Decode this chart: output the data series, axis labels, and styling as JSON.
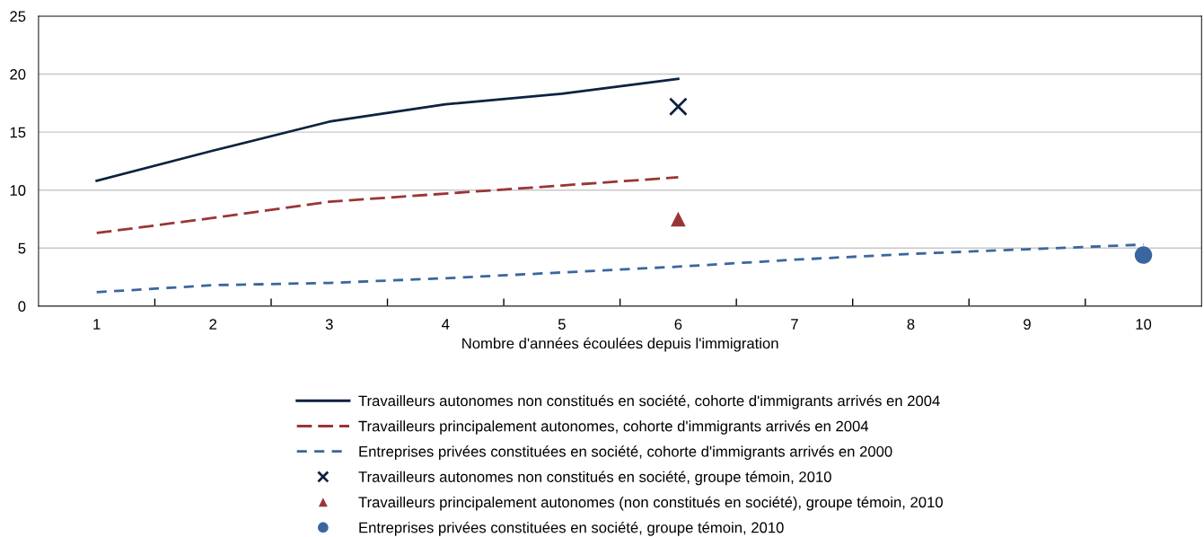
{
  "chart_data": {
    "type": "line",
    "xlabel": "Nombre d'années écoulées depuis l'immigration",
    "categories": [
      "1",
      "2",
      "3",
      "4",
      "5",
      "6",
      "7",
      "8",
      "9",
      "10"
    ],
    "ylim": [
      0,
      25
    ],
    "yticks": [
      0,
      5,
      10,
      15,
      20,
      25
    ],
    "grid": "y",
    "legend": "bottom",
    "series": [
      {
        "name": "Travailleurs autonomes non constitués en société, cohorte d'immigrants arrivés en 2004",
        "color": "#0d2240",
        "line_style": "solid",
        "values": [
          10.8,
          13.4,
          15.9,
          17.4,
          18.3,
          19.6,
          null,
          null,
          null,
          null
        ]
      },
      {
        "name": "Travailleurs principalement autonomes, cohorte d'immigrants arrivés en 2004",
        "color": "#9b3535",
        "line_style": "dashed",
        "values": [
          6.3,
          7.6,
          9.0,
          9.7,
          10.4,
          11.1,
          null,
          null,
          null,
          null
        ]
      },
      {
        "name": "Entreprises privées constituées en société, cohorte d'immigrants arrivés en 2000",
        "color": "#3a66a0",
        "line_style": "dotted",
        "values": [
          1.2,
          1.8,
          2.0,
          2.4,
          2.9,
          3.4,
          4.0,
          4.5,
          4.9,
          5.3
        ]
      },
      {
        "name": "Travailleurs autonomes non constitués en société, groupe témoin, 2010",
        "type": "scatter",
        "marker": "cross",
        "color": "#0d2240",
        "x": [
          "6"
        ],
        "values": [
          17.2
        ]
      },
      {
        "name": "Travailleurs principalement autonomes (non constitués en société), groupe témoin, 2010",
        "type": "scatter",
        "marker": "triangle",
        "color": "#9b3535",
        "x": [
          "6"
        ],
        "values": [
          7.5
        ]
      },
      {
        "name": "Entreprises privées constituées en société, groupe témoin, 2010",
        "type": "scatter",
        "marker": "circle",
        "color": "#3a66a0",
        "x": [
          "10"
        ],
        "values": [
          4.4
        ]
      }
    ]
  }
}
